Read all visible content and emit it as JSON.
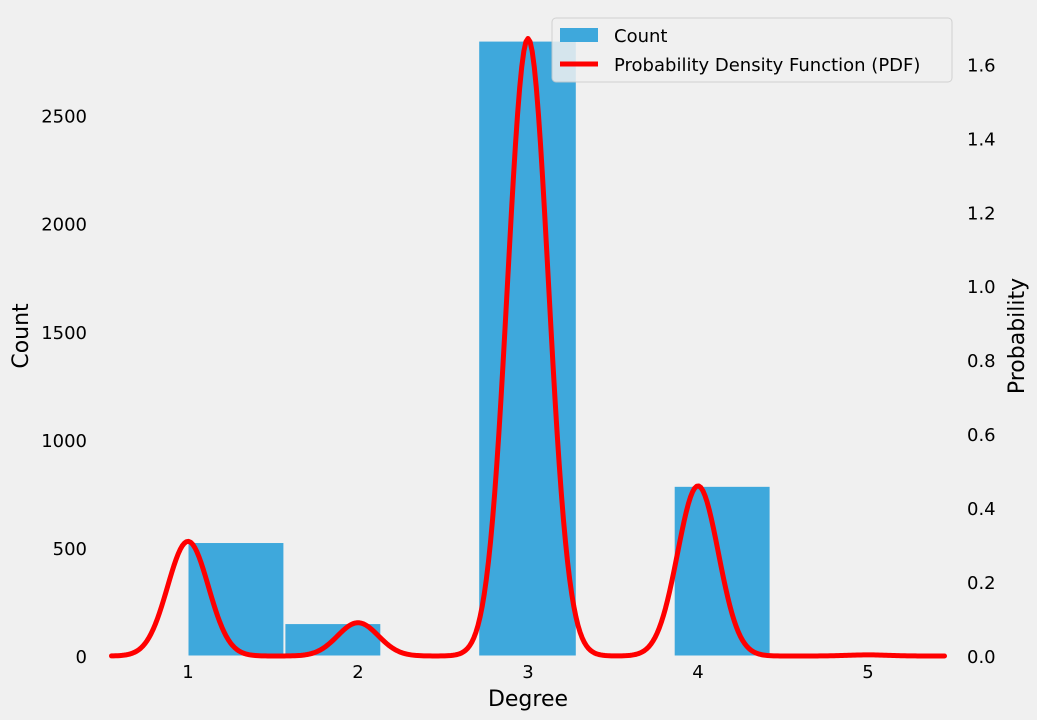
{
  "chart_data": {
    "type": "bar",
    "xlabel": "Degree",
    "ylabel": "Count",
    "y2label": "Probability",
    "xticks": [
      "1",
      "2",
      "3",
      "4",
      "5"
    ],
    "xlim": [
      0.5,
      5.5
    ],
    "ylim": [
      0,
      2850
    ],
    "y2lim": [
      0,
      1.72
    ],
    "yticks": [
      "0",
      "500",
      "1000",
      "1500",
      "2000",
      "2500"
    ],
    "y2ticks": [
      "0.0",
      "0.2",
      "0.4",
      "0.6",
      "0.8",
      "1.0",
      "1.2",
      "1.4",
      "1.6"
    ],
    "grid": false,
    "legend_position": "top-right",
    "colors": {
      "bar": "#3ea8dc",
      "line": "#ff0000",
      "background": "#f0f0f0"
    },
    "series": [
      {
        "name": "Count",
        "kind": "bar",
        "bins": [
          {
            "x0": 1.0,
            "x1": 1.57,
            "value": 525
          },
          {
            "x0": 1.57,
            "x1": 2.14,
            "value": 150
          },
          {
            "x0": 2.71,
            "x1": 3.29,
            "value": 2845
          },
          {
            "x0": 3.86,
            "x1": 4.43,
            "value": 785
          }
        ]
      },
      {
        "name": "Probability Density Function (PDF)",
        "kind": "line",
        "axis": "right",
        "peaks": [
          {
            "x": 1.0,
            "density": 0.31
          },
          {
            "x": 2.0,
            "density": 0.09
          },
          {
            "x": 3.0,
            "density": 1.67
          },
          {
            "x": 4.0,
            "density": 0.46
          },
          {
            "x": 5.0,
            "density": 0.003
          }
        ],
        "bandwidth": 0.12
      }
    ]
  }
}
